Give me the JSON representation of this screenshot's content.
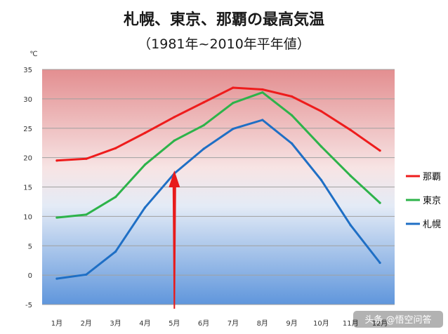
{
  "chart_data": {
    "type": "line",
    "title": "札幌、東京、那覇の最高気温",
    "subtitle": "（1981年~2010年平年値）",
    "ylabel": "℃",
    "ylim": [
      -5,
      35
    ],
    "yticks": [
      -5,
      0,
      5,
      10,
      15,
      20,
      25,
      30,
      35
    ],
    "grid": true,
    "legend": "right",
    "categories": [
      "1月",
      "2月",
      "3月",
      "4月",
      "5月",
      "6月",
      "7月",
      "8月",
      "9月",
      "10月",
      "11月",
      "12月"
    ],
    "series": [
      {
        "name": "那覇",
        "color": "#ee1c1c",
        "values": [
          19.5,
          19.8,
          21.6,
          24.2,
          26.9,
          29.4,
          31.9,
          31.6,
          30.4,
          27.9,
          24.7,
          21.2
        ]
      },
      {
        "name": "東京",
        "color": "#2db34a",
        "values": [
          9.8,
          10.3,
          13.3,
          18.8,
          22.9,
          25.5,
          29.3,
          31.1,
          27.2,
          21.9,
          16.9,
          12.3
        ]
      },
      {
        "name": "札幌",
        "color": "#1f6fc5",
        "values": [
          -0.6,
          0.1,
          4.0,
          11.5,
          17.3,
          21.5,
          24.9,
          26.4,
          22.4,
          16.2,
          8.5,
          2.1
        ]
      }
    ],
    "annotations": [
      {
        "type": "arrow",
        "color": "#e81b1b",
        "x": "5月",
        "y": 17.8
      }
    ]
  },
  "watermark": "头条 @悟空问答"
}
